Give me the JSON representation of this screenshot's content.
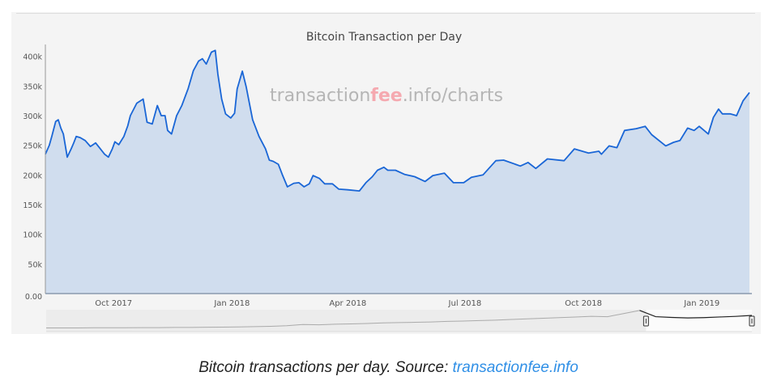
{
  "chart_data": {
    "type": "area",
    "title": "Bitcoin Transaction per Day",
    "watermark": {
      "pre": "transaction",
      "accent": "fee",
      "post": ".info/charts"
    },
    "xlabel": "",
    "ylabel": "",
    "x_unit": "days since 2017-10-01",
    "x_range": [
      -53,
      494
    ],
    "ylim": [
      0,
      420000
    ],
    "y_ticks": [
      0,
      50000,
      100000,
      150000,
      200000,
      250000,
      300000,
      350000,
      400000
    ],
    "y_tick_labels": [
      "0.00",
      "50k",
      "100k",
      "150k",
      "200k",
      "250k",
      "300k",
      "350k",
      "400k"
    ],
    "x_ticks": [
      0,
      92,
      182,
      273,
      365,
      457
    ],
    "x_tick_labels": [
      "Oct 2017",
      "Jan 2018",
      "Apr 2018",
      "Jul 2018",
      "Oct 2018",
      "Jan 2019"
    ],
    "grid": false,
    "legend": "none",
    "series": [
      {
        "name": "Transactions per day",
        "color": "#1a66d6",
        "fill": "#d0ddee",
        "points": [
          [
            -53,
            235000
          ],
          [
            -50,
            250000
          ],
          [
            -48,
            265000
          ],
          [
            -45,
            290000
          ],
          [
            -43,
            293000
          ],
          [
            -41,
            279000
          ],
          [
            -39,
            269000
          ],
          [
            -36,
            230000
          ],
          [
            -33,
            244000
          ],
          [
            -31,
            254000
          ],
          [
            -29,
            265000
          ],
          [
            -26,
            263000
          ],
          [
            -22,
            258000
          ],
          [
            -18,
            248000
          ],
          [
            -14,
            254000
          ],
          [
            -11,
            246000
          ],
          [
            -7,
            235000
          ],
          [
            -4,
            230000
          ],
          [
            -1,
            244000
          ],
          [
            1,
            256000
          ],
          [
            4,
            251000
          ],
          [
            8,
            265000
          ],
          [
            11,
            283000
          ],
          [
            13,
            300000
          ],
          [
            18,
            321000
          ],
          [
            23,
            328000
          ],
          [
            26,
            289000
          ],
          [
            30,
            286000
          ],
          [
            34,
            317000
          ],
          [
            37,
            300000
          ],
          [
            40,
            300000
          ],
          [
            42,
            275000
          ],
          [
            45,
            269000
          ],
          [
            49,
            300000
          ],
          [
            53,
            317000
          ],
          [
            58,
            346000
          ],
          [
            62,
            376000
          ],
          [
            66,
            392000
          ],
          [
            69,
            396000
          ],
          [
            72,
            387000
          ],
          [
            76,
            407000
          ],
          [
            79,
            410000
          ],
          [
            81,
            370000
          ],
          [
            84,
            328000
          ],
          [
            87,
            303000
          ],
          [
            91,
            296000
          ],
          [
            94,
            304000
          ],
          [
            96,
            345000
          ],
          [
            100,
            375000
          ],
          [
            103,
            349000
          ],
          [
            108,
            293000
          ],
          [
            113,
            265000
          ],
          [
            118,
            244000
          ],
          [
            121,
            225000
          ],
          [
            124,
            223000
          ],
          [
            128,
            218000
          ],
          [
            131,
            201000
          ],
          [
            135,
            180000
          ],
          [
            140,
            186000
          ],
          [
            144,
            187000
          ],
          [
            148,
            180000
          ],
          [
            152,
            185000
          ],
          [
            155,
            199000
          ],
          [
            160,
            194000
          ],
          [
            164,
            185000
          ],
          [
            170,
            185000
          ],
          [
            175,
            176000
          ],
          [
            182,
            175000
          ],
          [
            191,
            173000
          ],
          [
            196,
            187000
          ],
          [
            201,
            197000
          ],
          [
            205,
            208000
          ],
          [
            210,
            213000
          ],
          [
            213,
            208000
          ],
          [
            219,
            208000
          ],
          [
            226,
            201000
          ],
          [
            234,
            197000
          ],
          [
            242,
            189000
          ],
          [
            248,
            199000
          ],
          [
            257,
            203000
          ],
          [
            264,
            187000
          ],
          [
            272,
            187000
          ],
          [
            278,
            196000
          ],
          [
            287,
            200000
          ],
          [
            297,
            224000
          ],
          [
            303,
            225000
          ],
          [
            316,
            215000
          ],
          [
            322,
            221000
          ],
          [
            328,
            211000
          ],
          [
            337,
            227000
          ],
          [
            350,
            224000
          ],
          [
            358,
            244000
          ],
          [
            369,
            237000
          ],
          [
            377,
            240000
          ],
          [
            379,
            235000
          ],
          [
            385,
            249000
          ],
          [
            391,
            246000
          ],
          [
            397,
            275000
          ],
          [
            406,
            278000
          ],
          [
            413,
            282000
          ],
          [
            418,
            268000
          ],
          [
            429,
            249000
          ],
          [
            435,
            255000
          ],
          [
            440,
            258000
          ],
          [
            446,
            279000
          ],
          [
            451,
            275000
          ],
          [
            455,
            282000
          ],
          [
            462,
            269000
          ],
          [
            466,
            297000
          ],
          [
            470,
            311000
          ],
          [
            473,
            303000
          ],
          [
            479,
            303000
          ],
          [
            484,
            300000
          ],
          [
            489,
            325000
          ],
          [
            494,
            339000
          ]
        ]
      }
    ],
    "navigator": {
      "selected_fraction": [
        0.85,
        1.0
      ],
      "values": [
        8,
        8,
        8,
        9,
        9,
        9,
        10,
        10,
        11,
        11,
        12,
        13,
        14,
        16,
        18,
        22,
        30,
        28,
        32,
        34,
        36,
        40,
        42,
        44,
        46,
        50,
        52,
        55,
        58,
        62,
        66,
        70,
        74,
        78,
        82,
        80,
        100,
        120,
        80,
        75,
        72,
        74,
        78,
        82,
        88
      ]
    }
  },
  "caption": {
    "text": "Bitcoin transactions per day. Source: ",
    "link": "transactionfee.info"
  }
}
